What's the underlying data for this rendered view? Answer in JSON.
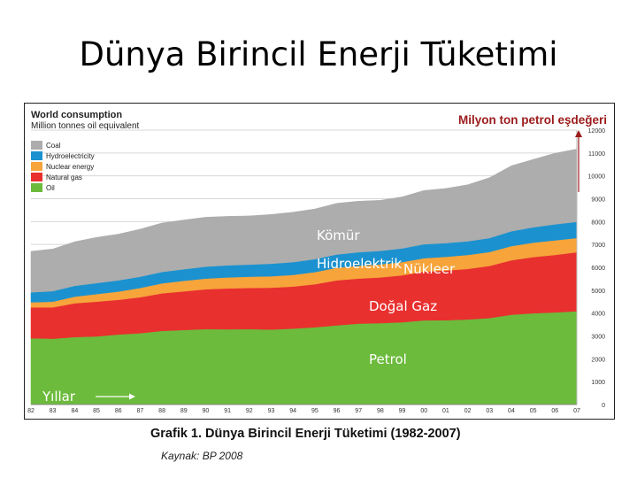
{
  "slide": {
    "title": "Dünya Birincil Enerji Tüketimi",
    "caption": "Grafik 1. Dünya Birincil Enerji Tüketimi (1982-2007)",
    "source": "Kaynak: BP 2008"
  },
  "chart_data": {
    "type": "area",
    "stacked": true,
    "title": "World consumption",
    "subtitle": "Million tonnes oil equivalent",
    "unit_label": "Milyon ton petrol eşdeğeri",
    "x_label": "Yıllar",
    "categories": [
      "82",
      "83",
      "84",
      "85",
      "86",
      "87",
      "88",
      "89",
      "90",
      "91",
      "92",
      "93",
      "94",
      "95",
      "96",
      "97",
      "98",
      "99",
      "00",
      "01",
      "02",
      "03",
      "04",
      "05",
      "06",
      "07"
    ],
    "ylim": [
      0,
      12000
    ],
    "yticks": [
      0,
      1000,
      2000,
      3000,
      4000,
      5000,
      6000,
      7000,
      8000,
      9000,
      10000,
      11000,
      12000
    ],
    "grid": true,
    "legend_position": "top-left",
    "series": [
      {
        "name": "Oil",
        "label_tr": "Petrol",
        "color": "#6cbb3c",
        "values": [
          2900,
          2880,
          2950,
          2980,
          3060,
          3120,
          3220,
          3260,
          3300,
          3290,
          3300,
          3280,
          3320,
          3380,
          3460,
          3540,
          3560,
          3600,
          3680,
          3690,
          3720,
          3780,
          3930,
          3990,
          4030,
          4080
        ]
      },
      {
        "name": "Natural gas",
        "label_tr": "Doğal Gaz",
        "color": "#e8302f",
        "values": [
          1350,
          1370,
          1480,
          1520,
          1520,
          1570,
          1640,
          1690,
          1740,
          1790,
          1800,
          1830,
          1840,
          1880,
          1970,
          1970,
          2000,
          2050,
          2130,
          2170,
          2210,
          2280,
          2380,
          2460,
          2510,
          2580
        ]
      },
      {
        "name": "Nuclear energy",
        "label_tr": "Nükleer",
        "color": "#f7a43b",
        "values": [
          220,
          250,
          290,
          330,
          360,
          410,
          440,
          460,
          470,
          480,
          490,
          500,
          510,
          530,
          550,
          560,
          570,
          580,
          590,
          600,
          610,
          610,
          620,
          630,
          640,
          620
        ]
      },
      {
        "name": "Hydroelectricity",
        "label_tr": "Hidroelektrik",
        "color": "#1b92cf",
        "values": [
          440,
          460,
          470,
          480,
          490,
          490,
          500,
          510,
          520,
          530,
          530,
          550,
          560,
          570,
          580,
          590,
          590,
          600,
          610,
          600,
          600,
          610,
          650,
          670,
          700,
          710
        ]
      },
      {
        "name": "Coal",
        "label_tr": "Kömür",
        "color": "#adadad",
        "values": [
          1790,
          1840,
          1930,
          2000,
          2020,
          2080,
          2140,
          2150,
          2160,
          2140,
          2130,
          2150,
          2180,
          2190,
          2240,
          2230,
          2210,
          2250,
          2350,
          2390,
          2470,
          2640,
          2860,
          2970,
          3110,
          3180
        ]
      }
    ],
    "legend_order": [
      "Coal",
      "Hydroelectricity",
      "Nuclear energy",
      "Natural gas",
      "Oil"
    ],
    "annotations": [
      "Kömür",
      "Hidroelektrik",
      "Nükleer",
      "Doğal Gaz",
      "Petrol"
    ]
  }
}
